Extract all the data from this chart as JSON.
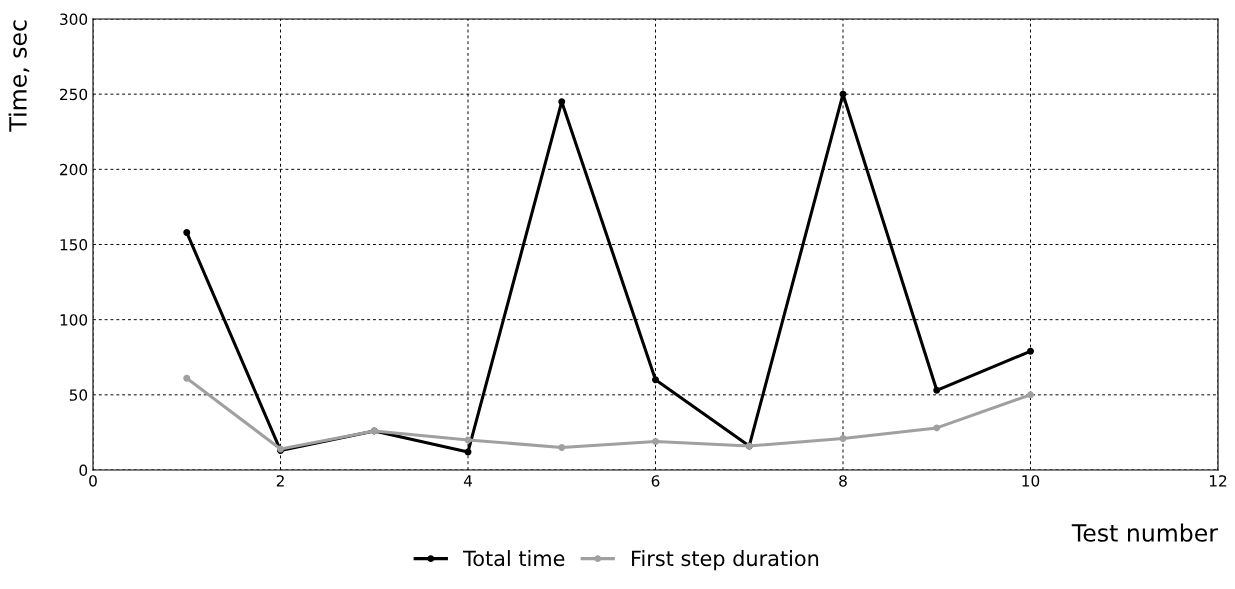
{
  "chart_data": {
    "type": "line",
    "xlabel": "Test number",
    "ylabel": "Time, sec",
    "x": [
      1,
      2,
      3,
      4,
      5,
      6,
      7,
      8,
      9,
      10
    ],
    "series": [
      {
        "name": "Total time",
        "color": "#000000",
        "values": [
          158,
          13,
          26,
          12,
          245,
          60,
          16,
          250,
          53,
          79
        ]
      },
      {
        "name": "First step duration",
        "color": "#a0a0a0",
        "values": [
          61,
          14,
          26,
          20,
          15,
          19,
          16,
          21,
          28,
          50
        ]
      }
    ],
    "xlim": [
      0,
      12
    ],
    "xticks": [
      0,
      2,
      4,
      6,
      8,
      10,
      12
    ],
    "ylim": [
      0,
      300
    ],
    "yticks": [
      0,
      50,
      100,
      150,
      200,
      250,
      300
    ],
    "grid": true,
    "legend": "bottom",
    "marker": "circle",
    "line_style": "solid"
  }
}
